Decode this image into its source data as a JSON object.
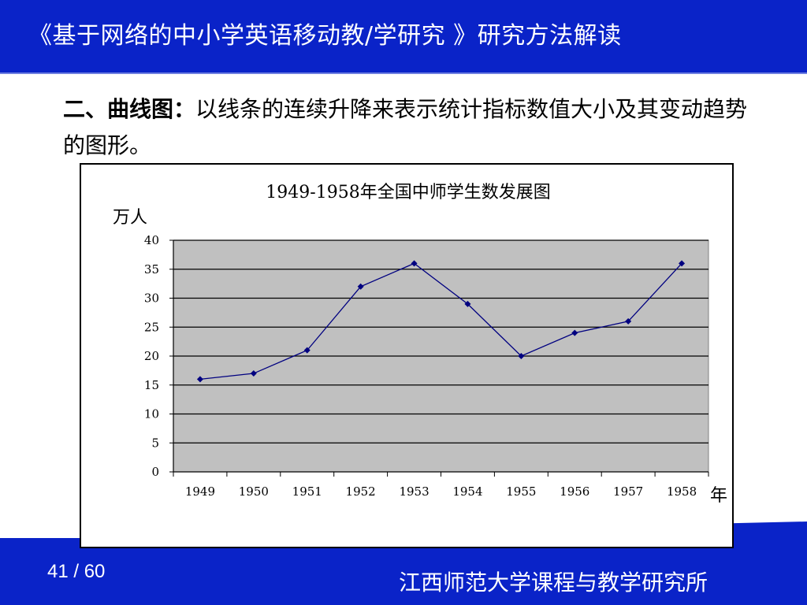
{
  "slide": {
    "title": "《基于网络的中小学英语移动教/学研究 》研究方法解读",
    "intro_prefix": "二、",
    "intro_term": "曲线图：",
    "intro_text": "以线条的连续升降来表示统计指标数值大小及其变动趋势的图形。",
    "page_number": "41 / 60",
    "institution": "江西师范大学课程与教学研究所",
    "partial_text": "…"
  },
  "colors": {
    "header_blue": "#0a23c8",
    "plot_bg": "#c0c0c0",
    "series_line": "#000080"
  },
  "chart_data": {
    "type": "line",
    "title": "1949-1958年全国中师学生数发展图",
    "ylabel": "万人",
    "xlabel": "年",
    "categories": [
      "1949",
      "1950",
      "1951",
      "1952",
      "1953",
      "1954",
      "1955",
      "1956",
      "1957",
      "1958"
    ],
    "series": [
      {
        "values": [
          16,
          17,
          21,
          32,
          36,
          29,
          20,
          24,
          26,
          36
        ]
      }
    ],
    "ylim": [
      0,
      40
    ],
    "yticks": [
      0,
      5,
      10,
      15,
      20,
      25,
      30,
      35,
      40
    ],
    "grid": true,
    "legend": "none",
    "marker": "diamond"
  }
}
